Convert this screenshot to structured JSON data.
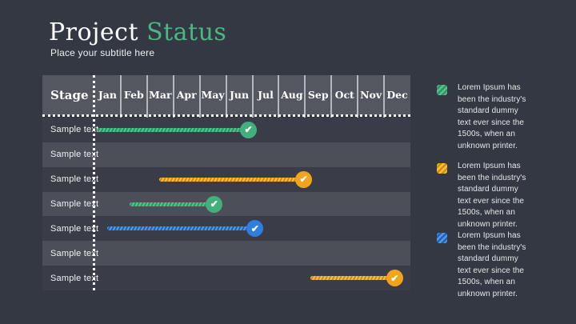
{
  "header": {
    "title_primary": "Project",
    "title_accent": "Status",
    "subtitle": "Place your subtitle here"
  },
  "chart_data": {
    "type": "bar",
    "subtype": "gantt-timeline",
    "title": "Project Status",
    "stage_header": "Stage",
    "months": [
      "Jan",
      "Feb",
      "Mar",
      "Apr",
      "May",
      "Jun",
      "Jul",
      "Aug",
      "Sep",
      "Oct",
      "Nov",
      "Dec"
    ],
    "x_range_months": [
      0,
      12
    ],
    "grid": true,
    "check_glyph": "✔",
    "rows": [
      {
        "label": "Sample text",
        "bar": {
          "color_key": "green",
          "start_month": 0.1,
          "end_month": 5.85,
          "complete": true
        }
      },
      {
        "label": "Sample text",
        "bar": null
      },
      {
        "label": "Sample text",
        "bar": {
          "color_key": "orange",
          "start_month": 2.45,
          "end_month": 7.95,
          "complete": true
        }
      },
      {
        "label": "Sample text",
        "bar": {
          "color_key": "green",
          "start_month": 1.35,
          "end_month": 4.55,
          "complete": true
        }
      },
      {
        "label": "Sample text",
        "bar": {
          "color_key": "blue",
          "start_month": 0.5,
          "end_month": 6.1,
          "complete": true
        }
      },
      {
        "label": "Sample text",
        "bar": null
      },
      {
        "label": "Sample text",
        "bar": {
          "color_key": "orange",
          "start_month": 8.2,
          "end_month": 11.4,
          "complete": true
        }
      }
    ],
    "colors": {
      "green": {
        "base": "#41b07c",
        "light": "#58c18e",
        "dark": "#2d9463"
      },
      "orange": {
        "base": "#f2a51c",
        "light": "#f9bd48",
        "dark": "#d58c05"
      },
      "blue": {
        "base": "#2e7fe0",
        "light": "#5598e9",
        "dark": "#1a62bd"
      }
    },
    "accent_title_color": "#4cb782"
  },
  "legend": {
    "items": [
      {
        "color_key": "green",
        "text": "Lorem Ipsum has been the industry's standard dummy text ever since the 1500s, when an unknown printer.",
        "lines": [
          "Lorem Ipsum has",
          "been the industry's",
          "standard dummy",
          "text ever since the",
          "1500s, when an",
          "unknown printer."
        ]
      },
      {
        "color_key": "orange",
        "text": "Lorem Ipsum has been the industry's standard dummy text ever since the 1500s, when an unknown printer.",
        "lines": [
          "Lorem Ipsum has",
          "been the industry's",
          "standard dummy",
          "text ever since the",
          "1500s, when an",
          "unknown printer."
        ]
      },
      {
        "color_key": "blue",
        "text": "Lorem Ipsum has been the industry's standard dummy text ever since the 1500s, when an unknown printer.",
        "lines": [
          "Lorem Ipsum has",
          "been the industry's",
          "standard dummy",
          "text ever since the",
          "1500s, when an",
          "unknown printer."
        ]
      }
    ]
  }
}
